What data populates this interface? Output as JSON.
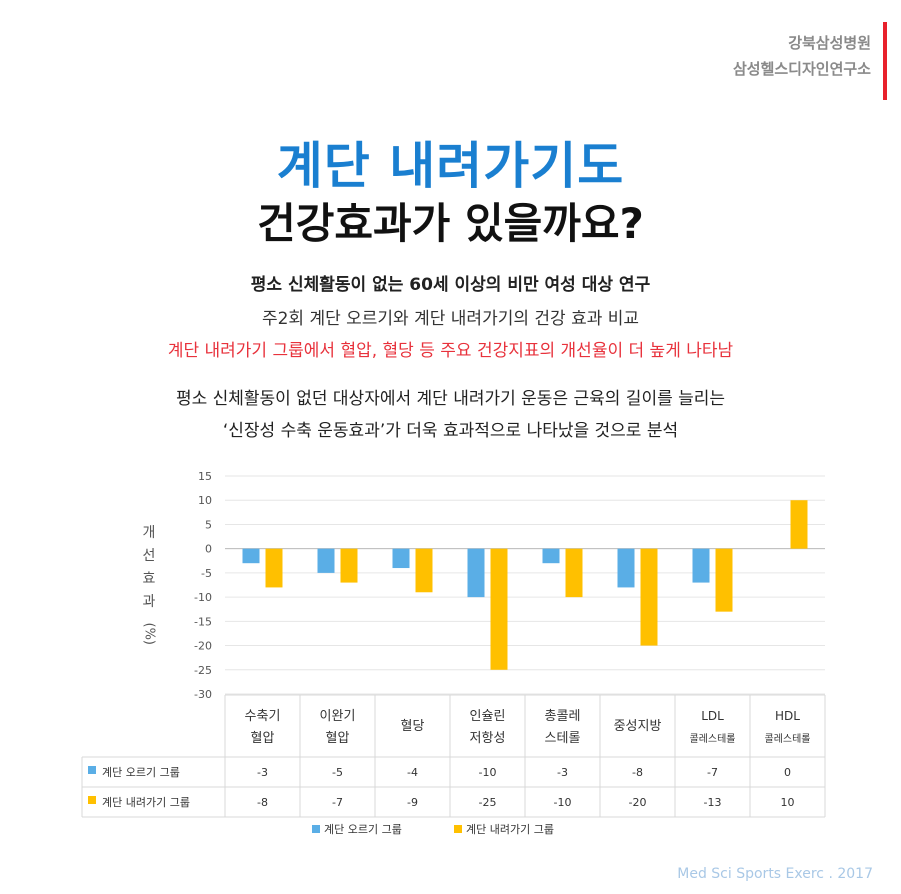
{
  "header": {
    "org_line1": "강북삼성병원",
    "org_line2": "삼성헬스디자인연구소"
  },
  "title": {
    "line1": "계단 내려가기도",
    "line2": "건강효과가 있을까요?"
  },
  "body": {
    "line1": "평소 신체활동이 없는 60세 이상의 비만 여성 대상 연구",
    "line2": "주2회 계단 오르기와 계단 내려가기의 건강 효과 비교",
    "line3": "계단 내려가기 그룹에서 혈압, 혈당 등 주요 건강지표의 개선율이 더 높게 나타남",
    "line4": "평소 신체활동이 없던 대상자에서 계단 내려가기 운동은 근육의 길이를 늘리는",
    "line5": "‘신장성 수축 운동효과’가 더욱 효과적으로 나타났을 것으로 분석"
  },
  "source": "Med Sci Sports Exerc . 2017",
  "chart_data": {
    "type": "bar",
    "ylabel": "개선효과 (%)",
    "ylim": [
      -30,
      15
    ],
    "yticks": [
      15,
      10,
      5,
      0,
      -5,
      -10,
      -15,
      -20,
      -25,
      -30
    ],
    "grid": true,
    "legend_position": "bottom",
    "categories": [
      {
        "line1": "수축기",
        "line2": "혈압",
        "small": false
      },
      {
        "line1": "이완기",
        "line2": "혈압",
        "small": false
      },
      {
        "line1": "혈당",
        "line2": "",
        "small": false
      },
      {
        "line1": "인슐린",
        "line2": "저항성",
        "small": false
      },
      {
        "line1": "총콜레",
        "line2": "스테롤",
        "small": false
      },
      {
        "line1": "중성지방",
        "line2": "",
        "small": false
      },
      {
        "line1": "LDL",
        "line2": "콜레스테롤",
        "small": true
      },
      {
        "line1": "HDL",
        "line2": "콜레스테롤",
        "small": true
      }
    ],
    "series": [
      {
        "name": "계단 오르기 그룹",
        "color": "#5aaee6",
        "values": [
          -3,
          -5,
          -4,
          -10,
          -3,
          -8,
          -7,
          0
        ]
      },
      {
        "name": "계단 내려가기 그룹",
        "color": "#ffc000",
        "values": [
          -8,
          -7,
          -9,
          -25,
          -10,
          -20,
          -13,
          10
        ]
      }
    ]
  }
}
